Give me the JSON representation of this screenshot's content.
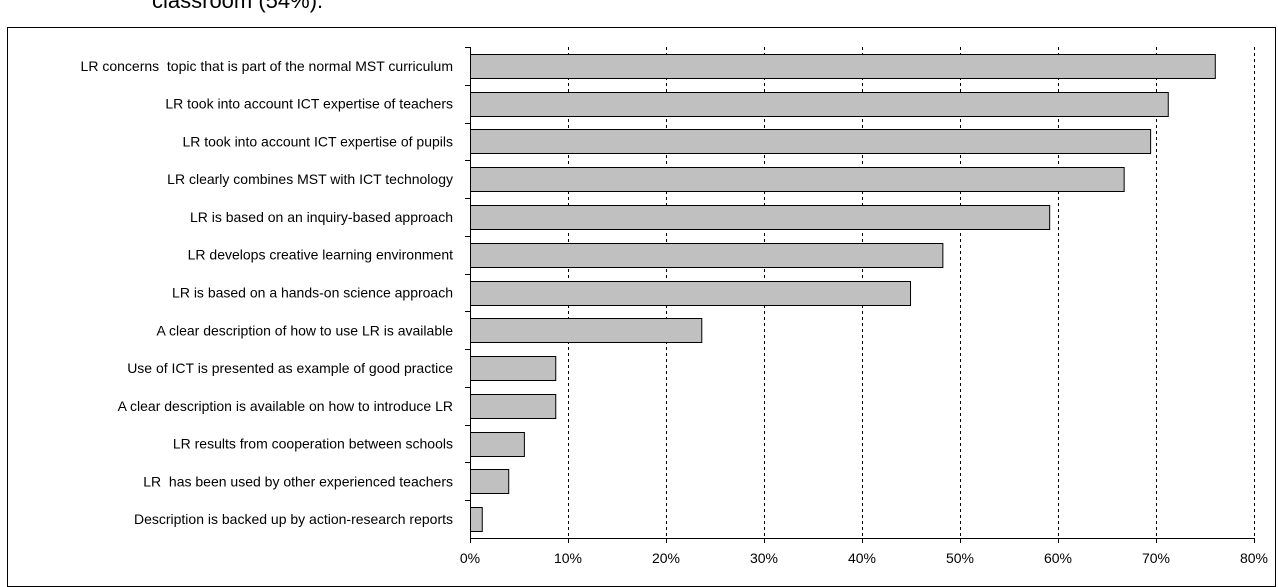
{
  "top_text": "classroom (54%).",
  "colors": {
    "bar_fill": "#c0c0c0",
    "bar_stroke": "#000000",
    "grid": "#000000",
    "background": "#ffffff"
  },
  "chart_data": {
    "type": "bar",
    "orientation": "horizontal",
    "categories": [
      "LR concerns  topic that is part of the normal MST curriculum",
      "LR took into account ICT expertise of teachers",
      "LR took into account ICT expertise of pupils",
      "LR clearly combines MST with ICT technology",
      "LR is based on an inquiry-based approach",
      "LR develops creative learning environment",
      "LR is based on a hands-on science approach",
      "A clear description of how to use LR is available",
      "Use of ICT is presented as example of good practice",
      "A clear description is available on how to introduce LR",
      "LR results from cooperation between schools",
      "LR  has been used by other experienced teachers",
      "Description is backed up by action-research reports"
    ],
    "values": [
      76,
      71.2,
      69.4,
      66.7,
      59.1,
      48.2,
      44.9,
      23.6,
      8.7,
      8.7,
      5.5,
      3.9,
      1.2
    ],
    "xlim": [
      0,
      80
    ],
    "ticks": [
      0,
      10,
      20,
      30,
      40,
      50,
      60,
      70,
      80
    ],
    "tick_labels": [
      "0%",
      "10%",
      "20%",
      "30%",
      "40%",
      "50%",
      "60%",
      "70%",
      "80%"
    ],
    "grid": "vertical dashed",
    "legend": "none"
  }
}
